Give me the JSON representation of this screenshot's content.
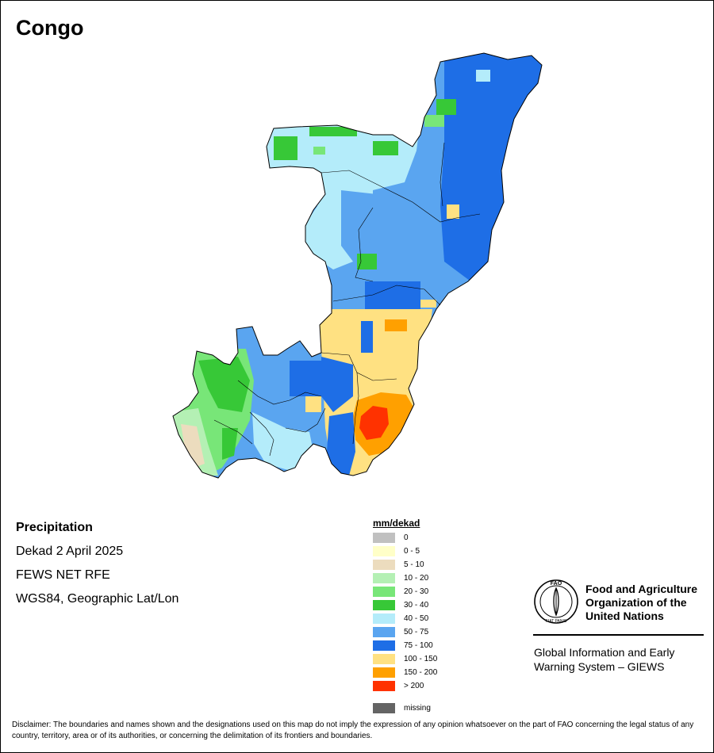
{
  "map_title": "Congo",
  "info": {
    "variable": "Precipitation",
    "period": "Dekad 2 April 2025",
    "source": "FEWS NET RFE",
    "projection": "WGS84, Geographic Lat/Lon"
  },
  "legend": {
    "title": "mm/dekad",
    "classes": [
      {
        "label": "0",
        "color": "#c0c0c0"
      },
      {
        "label": "0 - 5",
        "color": "#ffffc8"
      },
      {
        "label": "5 - 10",
        "color": "#ecdcbe"
      },
      {
        "label": "10 - 20",
        "color": "#b4f0b4"
      },
      {
        "label": "20 - 30",
        "color": "#78e678"
      },
      {
        "label": "30 - 40",
        "color": "#37c837"
      },
      {
        "label": "40 - 50",
        "color": "#b4ecfa"
      },
      {
        "label": "50 - 75",
        "color": "#5aa5f0"
      },
      {
        "label": "75 - 100",
        "color": "#1e6ee6"
      },
      {
        "label": "100 - 150",
        "color": "#ffe182"
      },
      {
        "label": "150 - 200",
        "color": "#ffa000"
      },
      {
        "label": "> 200",
        "color": "#ff3200"
      }
    ],
    "missing": {
      "label": "missing",
      "color": "#646464"
    }
  },
  "organization": {
    "name_line1": "Food and Agriculture",
    "name_line2": "Organization of the",
    "name_line3": "United Nations",
    "logo_text": "FAO",
    "logo_motto": "FIAT PANIS",
    "system_line1": "Global Information and Early",
    "system_line2": "Warning System – GIEWS"
  },
  "disclaimer": "Disclaimer: The boundaries and names shown and the designations used on this map do not imply the expression of any opinion whatsoever on the part of FAO concerning the legal status of any country, territory, area or of its authorities, or concerning the delimitation of its frontiers and boundaries."
}
